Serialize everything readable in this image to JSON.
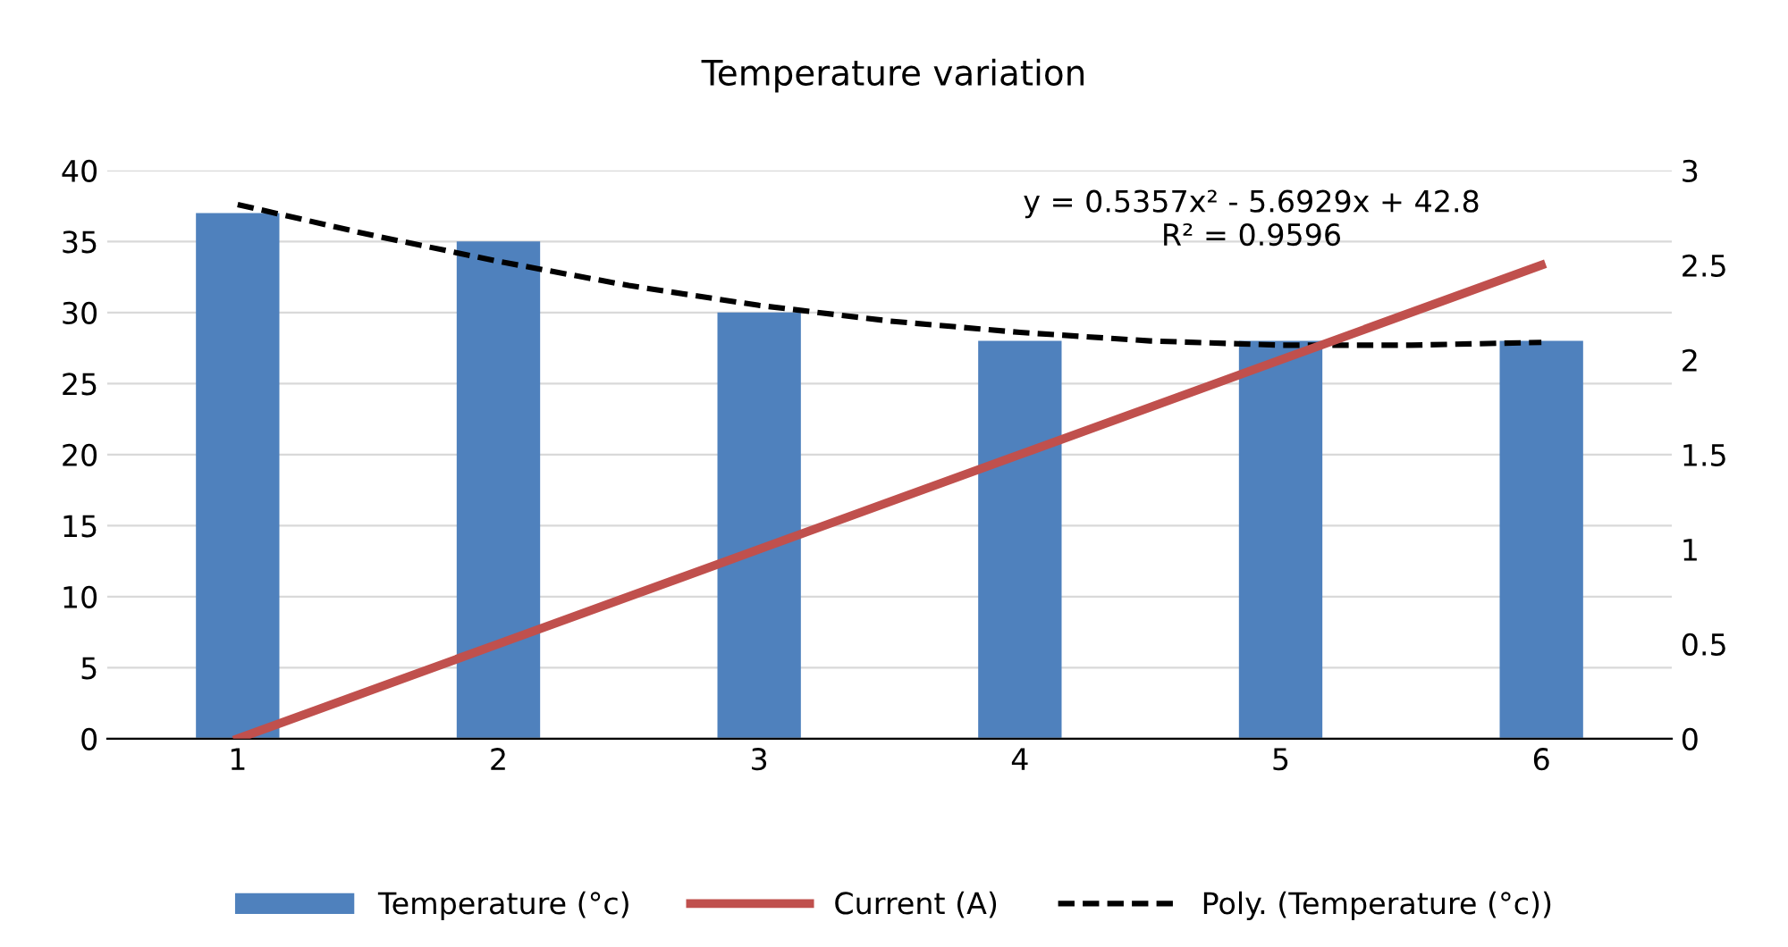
{
  "chart_data": {
    "type": "bar",
    "title": "Temperature variation",
    "x": [
      1,
      2,
      3,
      4,
      5,
      6
    ],
    "series": [
      {
        "name": "Temperature (°c)",
        "color": "#4f81bd",
        "values": [
          37,
          35,
          30,
          28,
          28,
          28
        ]
      },
      {
        "name": "Current (A)",
        "type": "line",
        "axis": "y2",
        "color": "#c0504d",
        "values": [
          0,
          0.5,
          1,
          1.5,
          2,
          2.5
        ]
      },
      {
        "name": "Poly. (Temperature (°c))",
        "type": "line",
        "color": "#000000",
        "line_style": "dashed",
        "x": [
          1,
          1.5,
          2,
          2.5,
          3,
          3.5,
          4,
          4.5,
          5,
          5.5,
          6
        ],
        "values": [
          37.6,
          35.5,
          33.6,
          31.9,
          30.5,
          29.4,
          28.6,
          28.0,
          27.7,
          27.7,
          27.9
        ]
      }
    ],
    "xlim": [
      0.5,
      6.5
    ],
    "xticks": [
      1,
      2,
      3,
      4,
      5,
      6
    ],
    "ylim": [
      0,
      40
    ],
    "yticks": [
      0,
      5,
      10,
      15,
      20,
      25,
      30,
      35,
      40
    ],
    "y2lim": [
      0,
      3
    ],
    "y2ticks": [
      0,
      0.5,
      1,
      1.5,
      2,
      2.5,
      3
    ],
    "grid": "y",
    "legend": "bottom",
    "annotations": [
      "y = 0.5357x² - 5.6929x + 42.8\nR² = 0.9596"
    ]
  }
}
